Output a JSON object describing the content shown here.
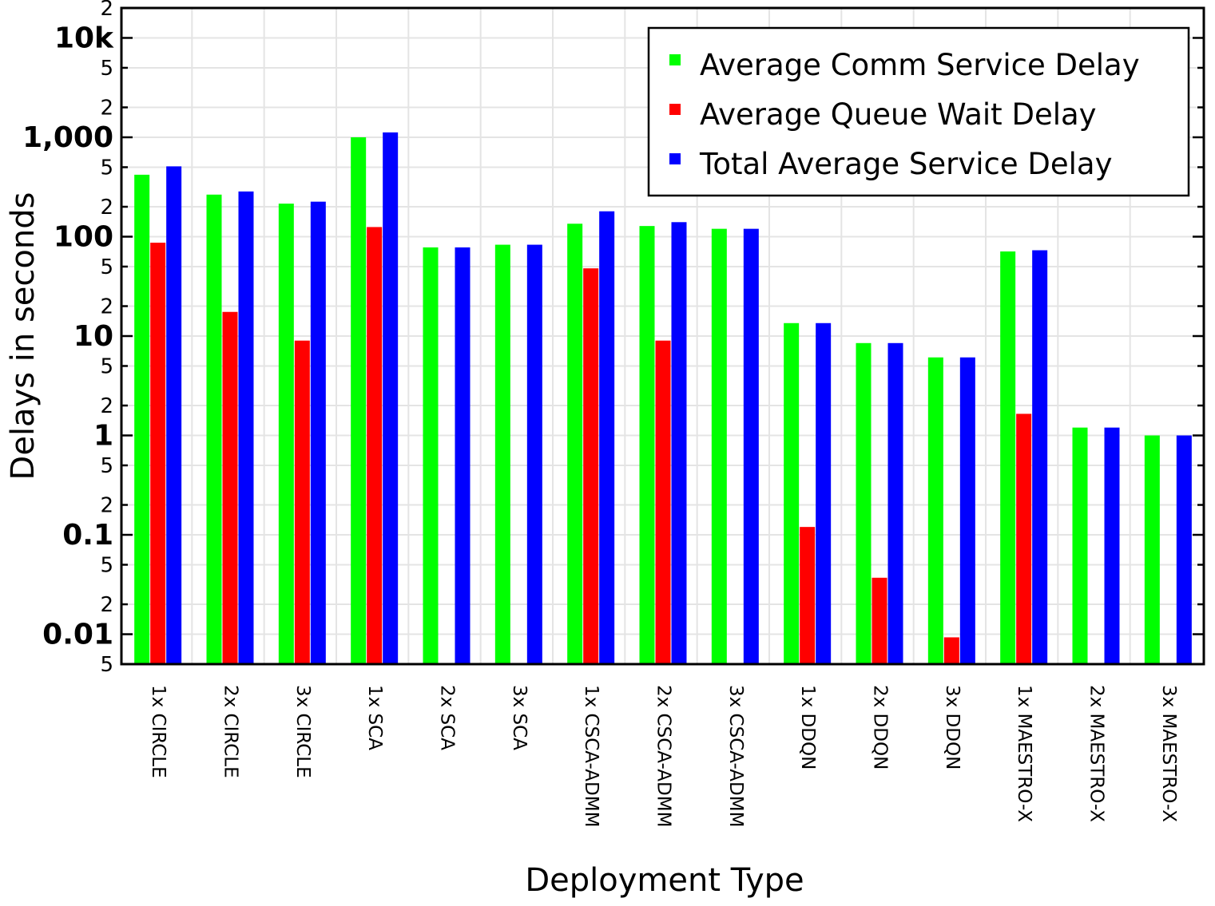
{
  "chart_data": {
    "type": "bar",
    "title": "",
    "xlabel": "Deployment Type",
    "ylabel": "Delays in seconds",
    "yscale": "log",
    "ylim": [
      0.005,
      20000
    ],
    "grid": true,
    "legend_position": "top-right",
    "categories": [
      "1x CIRCLE",
      "2x CIRCLE",
      "3x CIRCLE",
      "1x SCA",
      "2x SCA",
      "3x SCA",
      "1x CSCA-ADMM",
      "2x CSCA-ADMM",
      "3x CSCA-ADMM",
      "1x DDQN",
      "2x DDQN",
      "3x DDQN",
      "1x MAESTRO-X",
      "2x MAESTRO-X",
      "3x MAESTRO-X"
    ],
    "y_major_ticks": [
      {
        "value": 0.01,
        "label": "0.01"
      },
      {
        "value": 0.1,
        "label": "0.1"
      },
      {
        "value": 1,
        "label": "1"
      },
      {
        "value": 10,
        "label": "10"
      },
      {
        "value": 100,
        "label": "100"
      },
      {
        "value": 1000,
        "label": "1,000"
      },
      {
        "value": 10000,
        "label": "10k"
      }
    ],
    "y_minor_ticks": [
      {
        "value": 0.005,
        "label": "5"
      },
      {
        "value": 0.02,
        "label": "2"
      },
      {
        "value": 0.05,
        "label": "5"
      },
      {
        "value": 0.2,
        "label": "2"
      },
      {
        "value": 0.5,
        "label": "5"
      },
      {
        "value": 2,
        "label": "2"
      },
      {
        "value": 5,
        "label": "5"
      },
      {
        "value": 20,
        "label": "2"
      },
      {
        "value": 50,
        "label": "5"
      },
      {
        "value": 200,
        "label": "2"
      },
      {
        "value": 500,
        "label": "5"
      },
      {
        "value": 2000,
        "label": "2"
      },
      {
        "value": 5000,
        "label": "5"
      },
      {
        "value": 20000,
        "label": "2"
      }
    ],
    "series": [
      {
        "name": "Average Comm Service Delay",
        "color": "#00ff00",
        "values": [
          420,
          265,
          215,
          1000,
          78,
          83,
          135,
          128,
          120,
          13.5,
          8.5,
          6.1,
          71,
          1.2,
          1.0
        ]
      },
      {
        "name": "Average Queue Wait Delay",
        "color": "#ff0000",
        "values": [
          87,
          17.5,
          9.0,
          125,
          null,
          null,
          48,
          9.0,
          null,
          0.12,
          0.037,
          0.0093,
          1.65,
          null,
          null
        ]
      },
      {
        "name": "Total Average Service Delay",
        "color": "#0000ff",
        "values": [
          510,
          285,
          225,
          1120,
          78,
          83,
          180,
          140,
          120,
          13.5,
          8.5,
          6.1,
          73,
          1.2,
          1.0
        ]
      }
    ]
  }
}
